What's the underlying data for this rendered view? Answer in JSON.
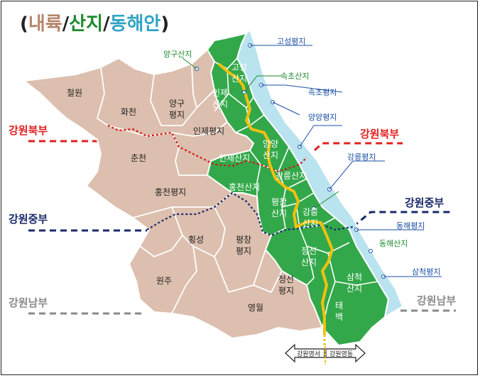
{
  "colors": {
    "naeryuk": "#dcbfae",
    "sanji": "#33a84a",
    "donghaean": "#b9e3ef",
    "north_line": "#e02020",
    "central_line": "#1a2a6a",
    "south_line": "#8a8a8a",
    "ridge": "#f2c10f",
    "label_blue": "#1a4fa8",
    "label_green": "#1d8a2e"
  },
  "title": {
    "open": "(",
    "part1": "내륙",
    "slash1": "/",
    "part2": "산지",
    "slash2": "/",
    "part3": "동해안",
    "close": ")"
  },
  "zones": {
    "north": "강원북부",
    "central": "강원중부",
    "south": "강원남부"
  },
  "inland": {
    "cheorwon": "철원",
    "hwacheon": "화천",
    "yanggu_pyeongji": [
      "양구",
      "평지"
    ],
    "inje_pyeongji": "인제평지",
    "chuncheon": "춘천",
    "hongcheon_pyeongji": "홍천평지",
    "hoengseong": "횡성",
    "pyeongchang_pyeongji": [
      "평창",
      "평지"
    ],
    "wonju": "원주",
    "jeongseon_pyeongji": [
      "정선",
      "평지"
    ],
    "yeongwol": "영월"
  },
  "mountain": {
    "yanggu_sanji": "양구산지",
    "goseong_sanji": [
      "고성",
      "산지"
    ],
    "inje_sanji_top": [
      "인제",
      "산지"
    ],
    "inje_sanji": "인제산지",
    "yangyang_sanji": [
      "양양",
      "산지"
    ],
    "gangneung_sanji_outer": "강릉산지",
    "hongcheon_sanji": "홍천산지",
    "pyeongchang_sanji": [
      "평창",
      "산지"
    ],
    "gangneung_sanji": [
      "강릉",
      "산지"
    ],
    "jeongseon_sanji": [
      "정선",
      "산지"
    ],
    "samcheok_sanji": [
      "삼척",
      "산지"
    ],
    "taebaek": [
      "태",
      "백"
    ],
    "sokcho_sanji": "속초산지",
    "donghae_sanji": "동해산지"
  },
  "coast": {
    "goseong_pyeongji": "고성평지",
    "sokcho_pyeongji": "속초평지",
    "yangyang_pyeongji": "양양평지",
    "gangneung_pyeongji": "강릉평지",
    "donghae_pyeongji": "동해평지",
    "samcheok_pyeongji": "삼척평지"
  },
  "arrow": {
    "west": "강원영서",
    "east": "강원영동"
  }
}
